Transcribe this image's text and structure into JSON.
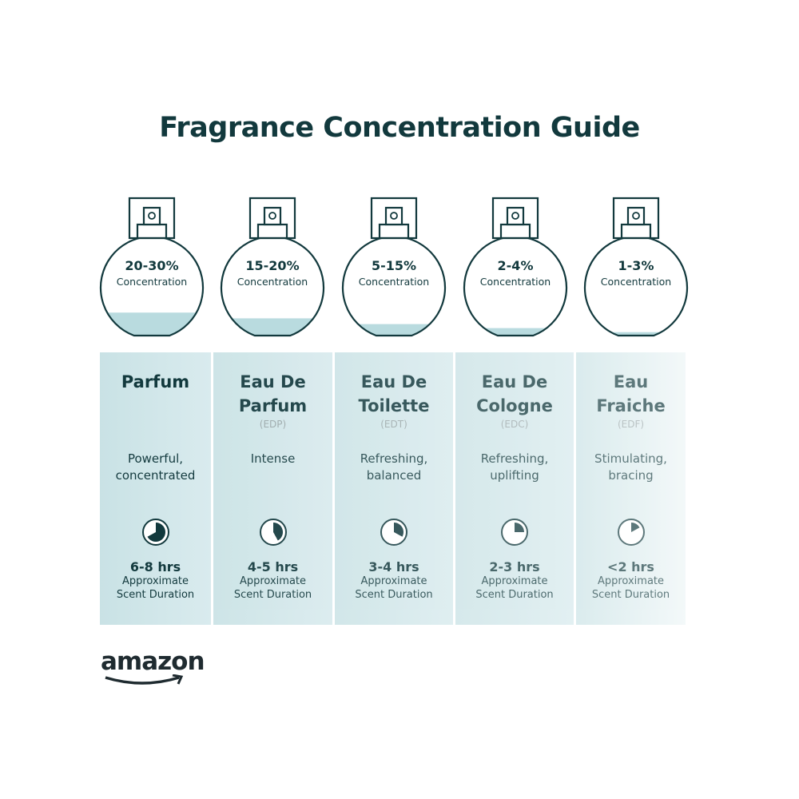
{
  "title": "Fragrance Concentration Guide",
  "colors": {
    "text": "#12393d",
    "liquid": "#b9dbdf",
    "column_start": "#c9e2e5",
    "column_end": "#eef6f7"
  },
  "duration_label": "Approximate",
  "duration_label2": "Scent Duration",
  "concentration_label": "Concentration",
  "types": [
    {
      "percent": "20-30%",
      "name1": "Parfum",
      "name2": "",
      "abbr": "",
      "desc1": "Powerful,",
      "desc2": "concentrated",
      "hours": "6-8 hrs",
      "fill_level": 0.4,
      "clock_fraction": 0.67
    },
    {
      "percent": "15-20%",
      "name1": "Eau De",
      "name2": "Parfum",
      "abbr": "(EDP)",
      "desc1": "Intense",
      "desc2": "",
      "hours": "4-5 hrs",
      "fill_level": 0.3,
      "clock_fraction": 0.42
    },
    {
      "percent": "5-15%",
      "name1": "Eau De",
      "name2": "Toilette",
      "abbr": "(EDT)",
      "desc1": "Refreshing,",
      "desc2": "balanced",
      "hours": "3-4 hrs",
      "fill_level": 0.2,
      "clock_fraction": 0.33
    },
    {
      "percent": "2-4%",
      "name1": "Eau De",
      "name2": "Cologne",
      "abbr": "(EDC)",
      "desc1": "Refreshing,",
      "desc2": "uplifting",
      "hours": "2-3 hrs",
      "fill_level": 0.13,
      "clock_fraction": 0.25
    },
    {
      "percent": "1-3%",
      "name1": "Eau",
      "name2": "Fraiche",
      "abbr": "(EDF)",
      "desc1": "Stimulating,",
      "desc2": "bracing",
      "hours": "<2 hrs",
      "fill_level": 0.06,
      "clock_fraction": 0.17
    }
  ],
  "logo": "amazon"
}
